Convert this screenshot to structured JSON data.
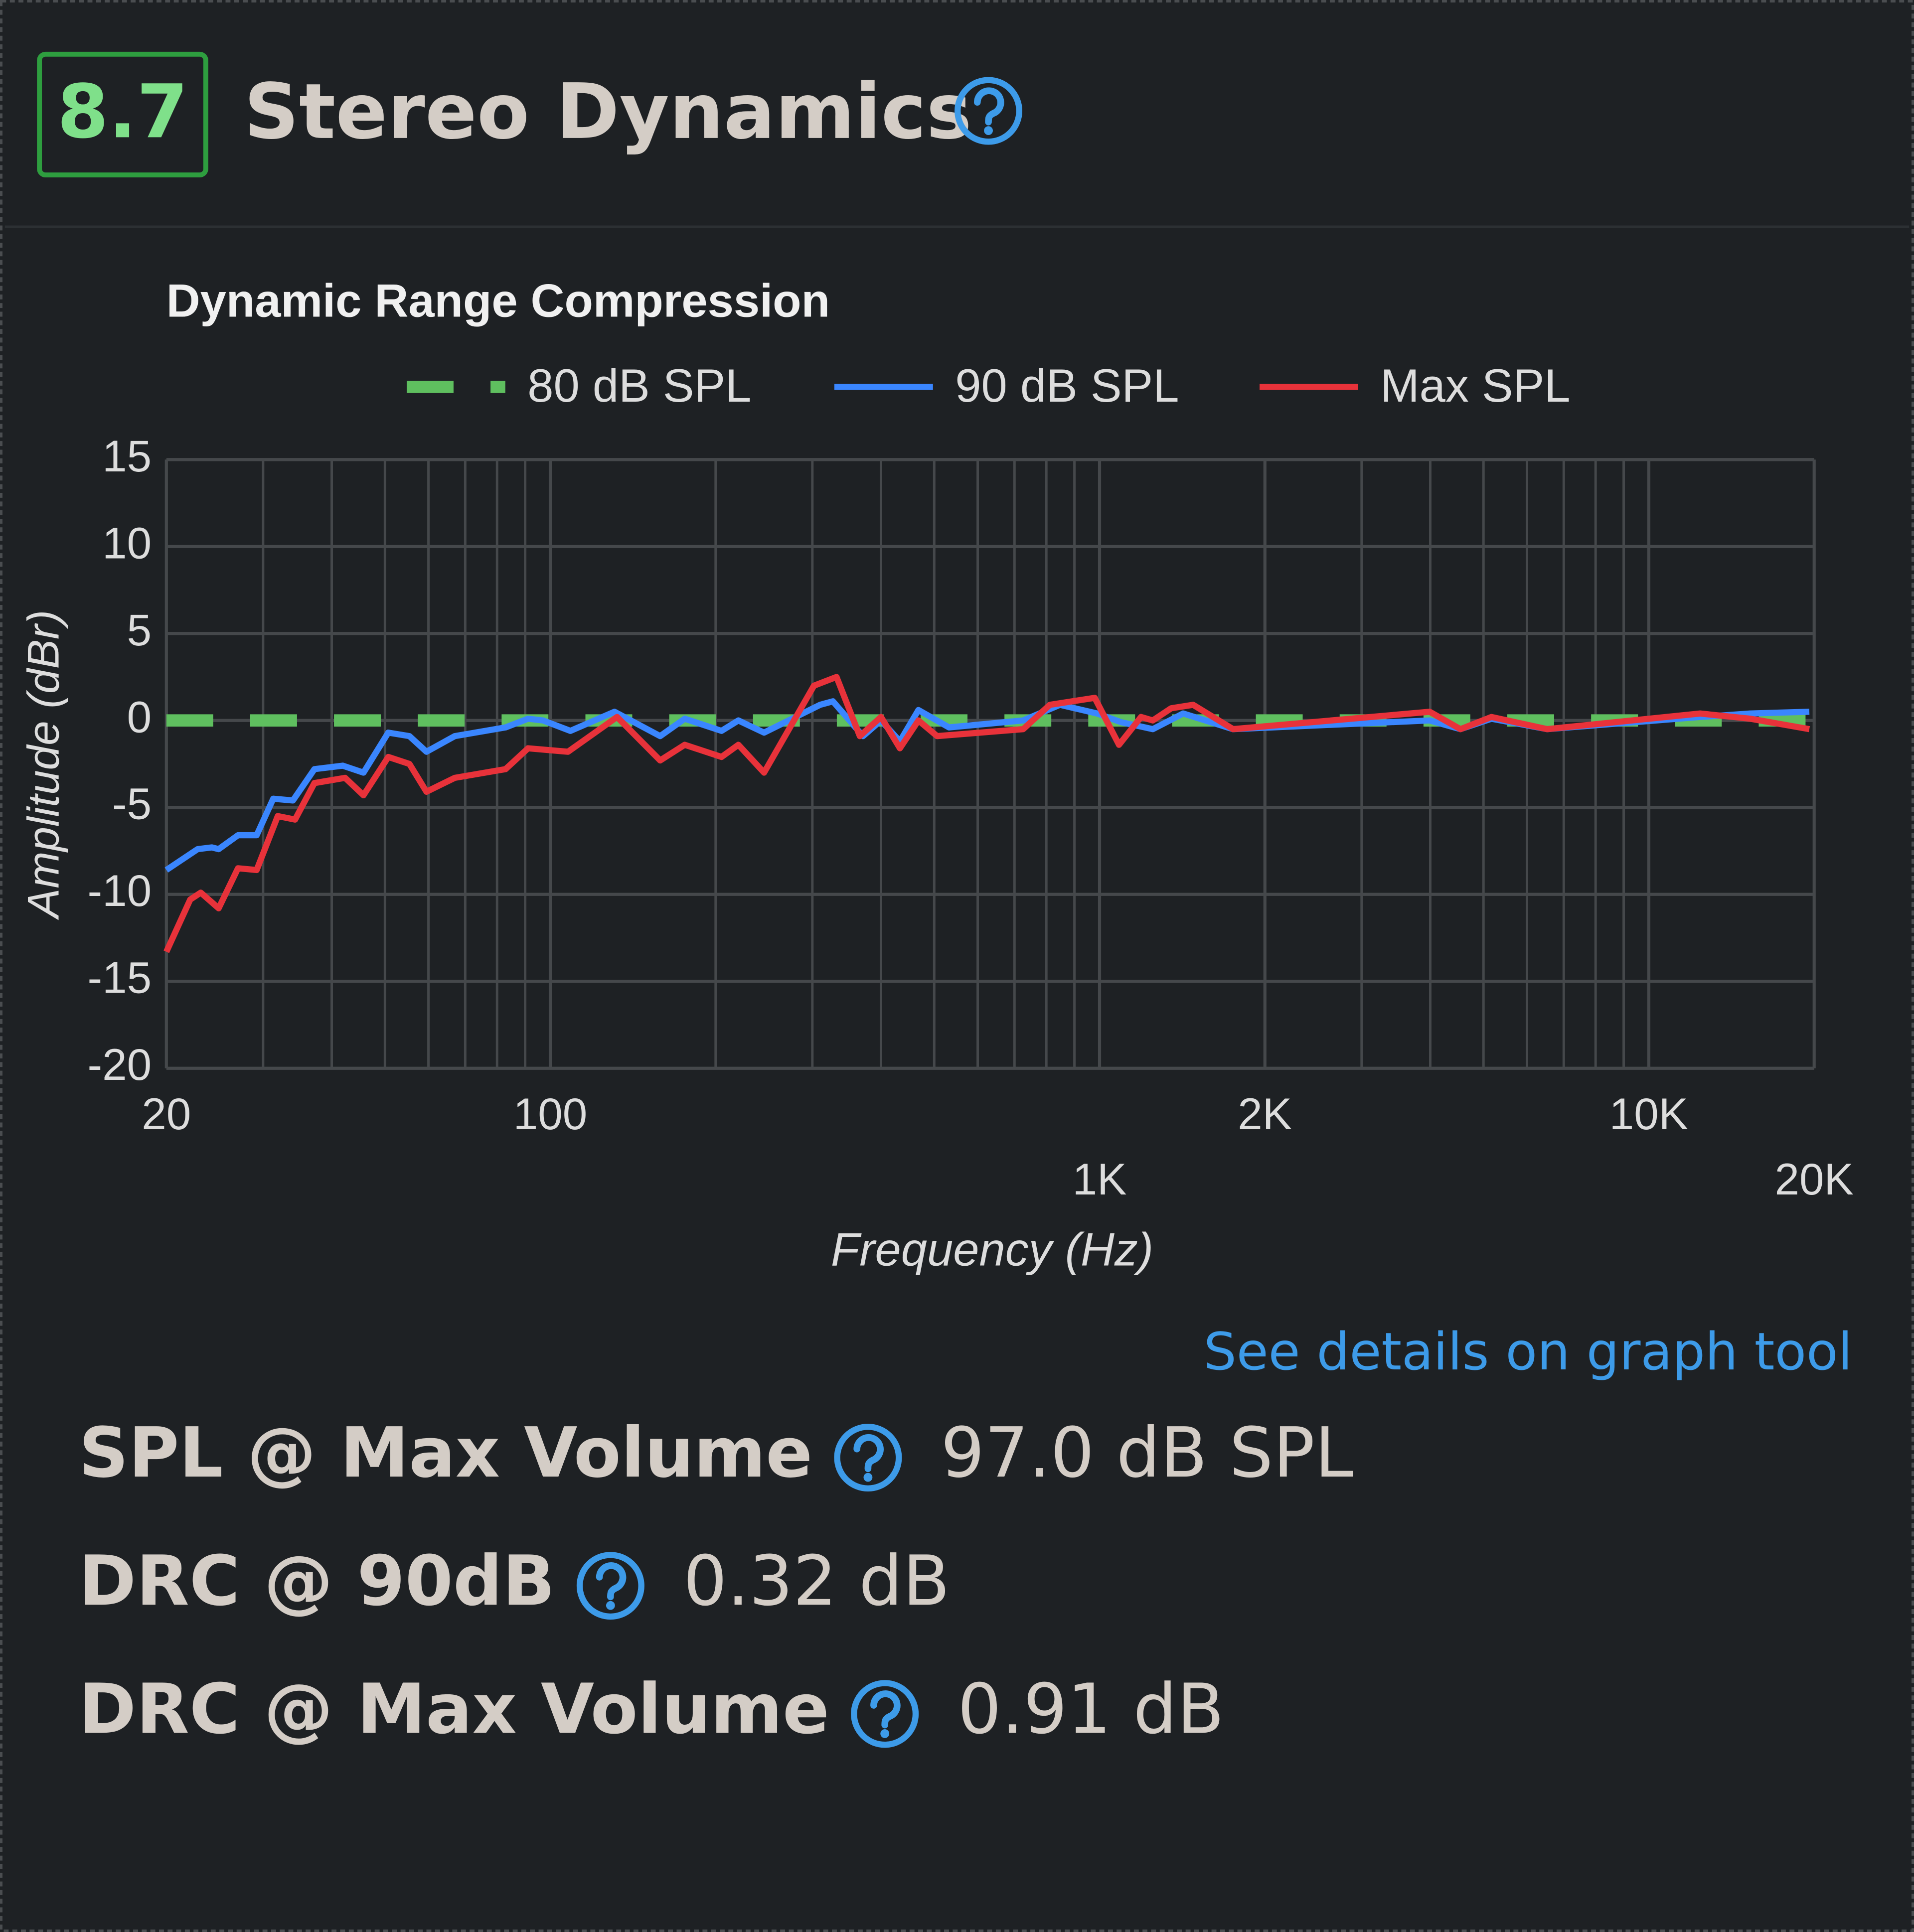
{
  "header": {
    "score": "8.7",
    "title": "Stereo Dynamics"
  },
  "chart_data": {
    "type": "line",
    "title": "Dynamic Range Compression",
    "x_label": "Frequency (Hz)",
    "y_label": "Amplitude (dBr)",
    "x_scale": "log",
    "grid": true,
    "xlim": [
      20,
      20000
    ],
    "ylim": [
      -20,
      15
    ],
    "yticks": [
      -20,
      -15,
      -10,
      -5,
      0,
      5,
      10,
      15
    ],
    "xticks": [
      20,
      100,
      {
        "value": 1000,
        "label": "1K"
      },
      {
        "value": 2000,
        "label": "2K"
      },
      {
        "value": 10000,
        "label": "10K"
      },
      {
        "value": 20000,
        "label": "20K"
      }
    ],
    "x_minor_ticks": [
      30,
      40,
      50,
      60,
      70,
      80,
      90,
      200,
      300,
      400,
      500,
      600,
      700,
      800,
      900,
      3000,
      4000,
      5000,
      6000,
      7000,
      8000,
      9000
    ],
    "series": [
      {
        "name": "80 dB SPL",
        "color": "#5fbf5f",
        "dashed": true,
        "x": [
          20,
          20000
        ],
        "values": [
          0,
          0
        ]
      },
      {
        "name": "90 dB SPL",
        "color": "#3a86ff",
        "dashed": false,
        "x": [
          20,
          22.8,
          24.2,
          24.9,
          27,
          29.2,
          31.3,
          34,
          37.2,
          41.9,
          45.7,
          50.7,
          55.4,
          59.5,
          67,
          82.9,
          91.1,
          97,
          108.8,
          130.9,
          158.5,
          175.7,
          205,
          220,
          245,
          310,
          327,
          371,
          400,
          433,
          468,
          532,
          726,
          847,
          990,
          1095,
          1250,
          1420,
          1750,
          3990,
          4540,
          5170,
          6530,
          12400,
          15300,
          19600
        ],
        "values": [
          -8.6,
          -7.4,
          -7.3,
          -7.4,
          -6.6,
          -6.6,
          -4.5,
          -4.6,
          -2.8,
          -2.6,
          -3.0,
          -0.7,
          -0.9,
          -1.8,
          -0.9,
          -0.4,
          0.1,
          0,
          -0.6,
          0.5,
          -0.9,
          0.1,
          -0.6,
          0,
          -0.7,
          0.9,
          1.1,
          -0.9,
          0,
          -1.2,
          0.6,
          -0.4,
          0,
          0.9,
          0.4,
          -0.1,
          -0.5,
          0.4,
          -0.5,
          0,
          -0.5,
          0.1,
          -0.5,
          0.2,
          0.4,
          0.5
        ]
      },
      {
        "name": "Max SPL",
        "color": "#e8323a",
        "dashed": false,
        "x": [
          20,
          22.1,
          23.1,
          24.9,
          27,
          29.2,
          31.9,
          34.3,
          37.2,
          42.3,
          45.7,
          50.7,
          55.4,
          59.5,
          67,
          82.9,
          91.1,
          107.7,
          132.3,
          158.5,
          175.7,
          205,
          220,
          245,
          302,
          332,
          366,
          400,
          433,
          468,
          506,
          726,
          812,
          980,
          1085,
          1190,
          1250,
          1350,
          1480,
          1750,
          3990,
          4540,
          5170,
          6530,
          12400,
          15300,
          19600
        ],
        "values": [
          -13.3,
          -10.3,
          -9.9,
          -10.8,
          -8.5,
          -8.6,
          -5.5,
          -5.7,
          -3.6,
          -3.3,
          -4.3,
          -2.1,
          -2.5,
          -4.1,
          -3.3,
          -2.8,
          -1.6,
          -1.8,
          0.2,
          -2.3,
          -1.4,
          -2.1,
          -1.4,
          -3.0,
          2.0,
          2.5,
          -0.9,
          0.2,
          -1.6,
          0,
          -0.9,
          -0.5,
          0.9,
          1.3,
          -1.4,
          0.2,
          0,
          0.7,
          0.9,
          -0.5,
          0.5,
          -0.5,
          0.2,
          -0.5,
          0.4,
          0.1,
          -0.5
        ]
      }
    ]
  },
  "link": "See details on graph tool",
  "metrics": [
    {
      "label": "SPL @ Max Volume",
      "value": "97.0 dB SPL"
    },
    {
      "label": "DRC @ 90dB",
      "value": "0.32 dB"
    },
    {
      "label": "DRC @ Max Volume",
      "value": "0.91 dB"
    }
  ]
}
